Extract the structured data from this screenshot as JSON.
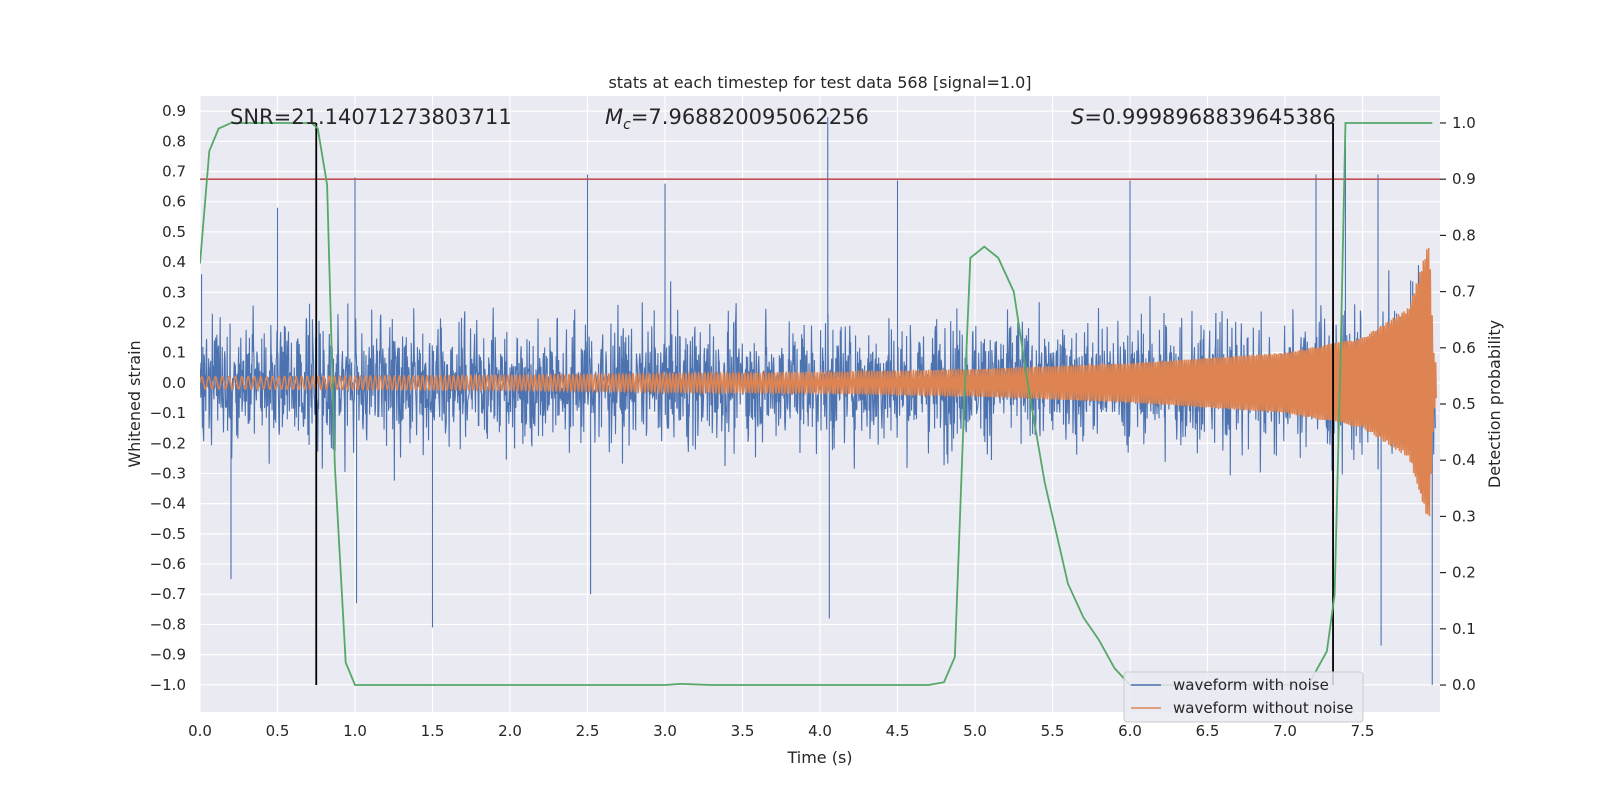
{
  "chart_data": {
    "type": "line",
    "title": "stats at each timestep for test data 568 [signal=1.0]",
    "xlabel": "Time (s)",
    "ylabel": "Whitened strain",
    "y2label": "Detection probability",
    "xlim": [
      0.0,
      8.0
    ],
    "ylim": [
      -1.09,
      0.95
    ],
    "y2lim": [
      -0.048,
      1.048
    ],
    "xticks": [
      0.0,
      0.5,
      1.0,
      1.5,
      2.0,
      2.5,
      3.0,
      3.5,
      4.0,
      4.5,
      5.0,
      5.5,
      6.0,
      6.5,
      7.0,
      7.5
    ],
    "xtick_labels": [
      "0.0",
      "0.5",
      "1.0",
      "1.5",
      "2.0",
      "2.5",
      "3.0",
      "3.5",
      "4.0",
      "4.5",
      "5.0",
      "5.5",
      "6.0",
      "6.5",
      "7.0",
      "7.5"
    ],
    "yticks": [
      0.9,
      0.8,
      0.7,
      0.6,
      0.5,
      0.4,
      0.3,
      0.2,
      0.1,
      0.0,
      -0.1,
      -0.2,
      -0.3,
      -0.4,
      -0.5,
      -0.6,
      -0.7,
      -0.8,
      -0.9,
      -1.0
    ],
    "ytick_labels": [
      "0.9",
      "0.8",
      "0.7",
      "0.6",
      "0.5",
      "0.4",
      "0.3",
      "0.2",
      "0.1",
      "0.0",
      "−0.1",
      "−0.2",
      "−0.3",
      "−0.4",
      "−0.5",
      "−0.6",
      "−0.7",
      "−0.8",
      "−0.9",
      "−1.0"
    ],
    "y2ticks": [
      1.0,
      0.9,
      0.8,
      0.7,
      0.6,
      0.5,
      0.4,
      0.3,
      0.2,
      0.1,
      0.0
    ],
    "y2tick_labels": [
      "1.0",
      "0.9",
      "0.8",
      "0.7",
      "0.6",
      "0.5",
      "0.4",
      "0.3",
      "0.2",
      "0.1",
      "0.0"
    ],
    "grid": true,
    "legend_position": "lower-right",
    "annotations": {
      "snr": "SNR=21.14071273803711",
      "mc_symbol": "M",
      "mc_sub": "c",
      "mc_value": "=7.968820095062256",
      "s_symbol": "S",
      "s_value": "=0.9998968839645386"
    },
    "threshold_prob": 0.9,
    "vertical_markers": [
      0.75,
      7.31
    ],
    "series": [
      {
        "name": "waveform with noise",
        "color": "#4c72b0",
        "axis": "left",
        "typical_amplitude": 0.33,
        "extremes": [
          {
            "x": 0.01,
            "y": 0.36
          },
          {
            "x": 0.2,
            "y": -0.65
          },
          {
            "x": 0.5,
            "y": 0.58
          },
          {
            "x": 1.0,
            "y": 0.68
          },
          {
            "x": 1.01,
            "y": -0.73
          },
          {
            "x": 1.5,
            "y": -0.81
          },
          {
            "x": 2.5,
            "y": 0.69
          },
          {
            "x": 2.52,
            "y": -0.7
          },
          {
            "x": 3.0,
            "y": 0.66
          },
          {
            "x": 4.05,
            "y": 0.88
          },
          {
            "x": 4.06,
            "y": -0.78
          },
          {
            "x": 4.5,
            "y": 0.67
          },
          {
            "x": 6.0,
            "y": 0.67
          },
          {
            "x": 7.2,
            "y": 0.69
          },
          {
            "x": 7.39,
            "y": 0.82
          },
          {
            "x": 7.6,
            "y": 0.69
          },
          {
            "x": 7.62,
            "y": -0.87
          },
          {
            "x": 7.95,
            "y": -1.0
          }
        ]
      },
      {
        "name": "waveform without noise",
        "color": "#dd8452",
        "axis": "left",
        "amplitude_envelope": [
          {
            "x": 0.0,
            "y": 0.02
          },
          {
            "x": 2.0,
            "y": 0.025
          },
          {
            "x": 4.0,
            "y": 0.035
          },
          {
            "x": 5.0,
            "y": 0.045
          },
          {
            "x": 6.0,
            "y": 0.065
          },
          {
            "x": 7.0,
            "y": 0.1
          },
          {
            "x": 7.5,
            "y": 0.15
          },
          {
            "x": 7.8,
            "y": 0.25
          },
          {
            "x": 7.93,
            "y": 0.47
          },
          {
            "x": 7.96,
            "y": 0.1
          },
          {
            "x": 8.0,
            "y": 0.0
          }
        ]
      },
      {
        "name": "detection probability",
        "color": "#55a868",
        "axis": "right",
        "points": [
          [
            0.0,
            0.75
          ],
          [
            0.06,
            0.95
          ],
          [
            0.12,
            0.99
          ],
          [
            0.2,
            1.0
          ],
          [
            0.5,
            1.0
          ],
          [
            0.72,
            1.0
          ],
          [
            0.76,
            0.99
          ],
          [
            0.82,
            0.89
          ],
          [
            0.87,
            0.39
          ],
          [
            0.94,
            0.04
          ],
          [
            1.0,
            0.0
          ],
          [
            2.0,
            0.0
          ],
          [
            3.0,
            0.0
          ],
          [
            3.1,
            0.002
          ],
          [
            3.3,
            0.0
          ],
          [
            4.0,
            0.0
          ],
          [
            4.7,
            0.0
          ],
          [
            4.8,
            0.005
          ],
          [
            4.87,
            0.05
          ],
          [
            4.93,
            0.5
          ],
          [
            4.97,
            0.76
          ],
          [
            5.06,
            0.78
          ],
          [
            5.15,
            0.76
          ],
          [
            5.25,
            0.7
          ],
          [
            5.35,
            0.52
          ],
          [
            5.45,
            0.36
          ],
          [
            5.6,
            0.18
          ],
          [
            5.7,
            0.12
          ],
          [
            5.8,
            0.08
          ],
          [
            5.9,
            0.03
          ],
          [
            6.0,
            0.0
          ],
          [
            7.15,
            0.0
          ],
          [
            7.27,
            0.06
          ],
          [
            7.32,
            0.16
          ],
          [
            7.36,
            0.6
          ],
          [
            7.39,
            1.0
          ],
          [
            7.95,
            1.0
          ]
        ]
      }
    ]
  }
}
